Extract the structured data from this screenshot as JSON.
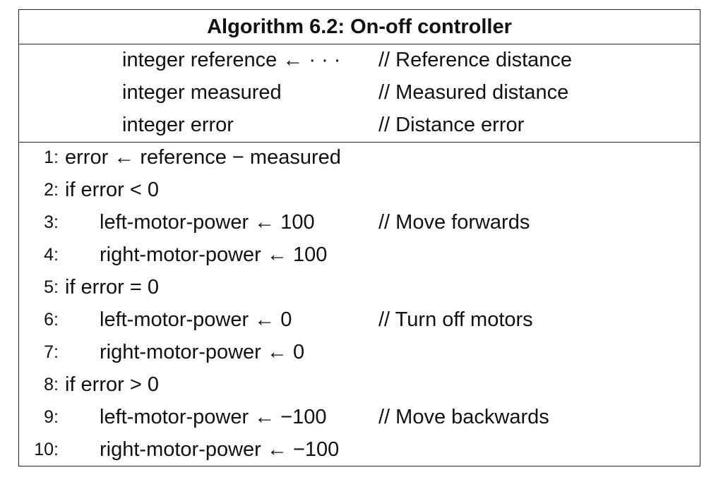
{
  "algorithm": {
    "title": "Algorithm 6.2: On-off controller",
    "declarations": [
      {
        "code": "integer reference ← · · ·",
        "comment": "// Reference distance"
      },
      {
        "code": "integer measured",
        "comment": "// Measured distance"
      },
      {
        "code": "integer error",
        "comment": "// Distance error"
      }
    ],
    "lines": [
      {
        "num": "1:",
        "code": "error ← reference − measured",
        "comment": ""
      },
      {
        "num": "2:",
        "code": "if error < 0",
        "comment": ""
      },
      {
        "num": "3:",
        "code": "left-motor-power ← 100",
        "comment": "// Move forwards"
      },
      {
        "num": "4:",
        "code": "right-motor-power ← 100",
        "comment": ""
      },
      {
        "num": "5:",
        "code": "if error = 0",
        "comment": ""
      },
      {
        "num": "6:",
        "code": "left-motor-power ← 0",
        "comment": "// Turn off motors"
      },
      {
        "num": "7:",
        "code": "right-motor-power ← 0",
        "comment": ""
      },
      {
        "num": "8:",
        "code": "if error > 0",
        "comment": ""
      },
      {
        "num": "9:",
        "code": "left-motor-power ← −100",
        "comment": "// Move backwards"
      },
      {
        "num": "10:",
        "code": "right-motor-power ← −100",
        "comment": ""
      }
    ]
  }
}
